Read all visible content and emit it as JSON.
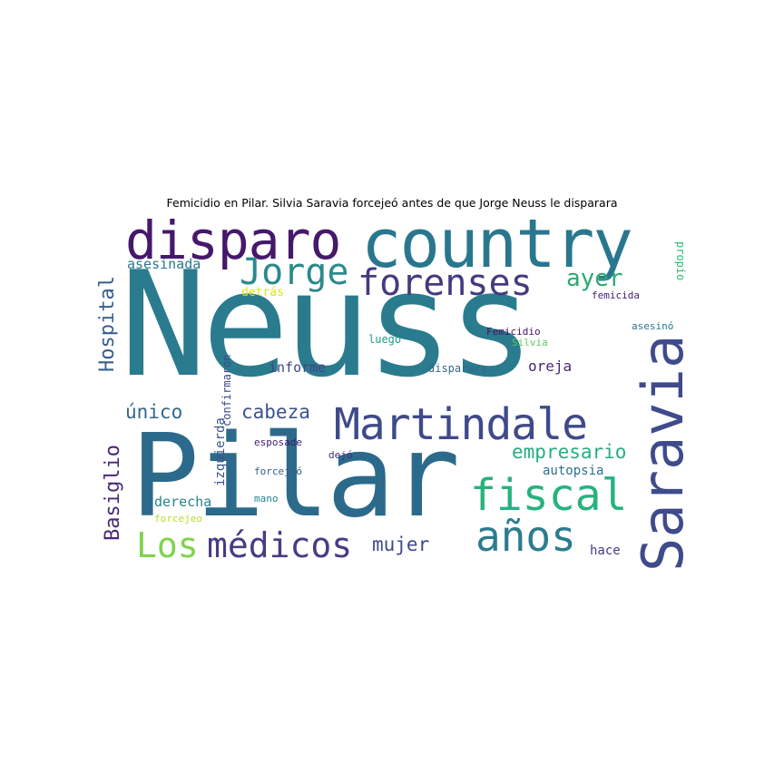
{
  "title": "Femicidio en Pilar. Silvia Saravia forcejeó antes de que Jorge Neuss le disparara",
  "words": {
    "neuss": {
      "text": "Neuss",
      "color": "#2a7b8e"
    },
    "pilar": {
      "text": "Pilar",
      "color": "#2c6a8c"
    },
    "country": {
      "text": "country",
      "color": "#29778e"
    },
    "disparo": {
      "text": "disparo",
      "color": "#46186b"
    },
    "jorge": {
      "text": "Jorge",
      "color": "#2a8a8c"
    },
    "forenses": {
      "text": "forenses",
      "color": "#433b80"
    },
    "saravia": {
      "text": "Saravia",
      "color": "#3f4b8a"
    },
    "martindale": {
      "text": "Martindale",
      "color": "#3f4a89"
    },
    "fiscal": {
      "text": "fiscal",
      "color": "#27b27d"
    },
    "anos": {
      "text": "años",
      "color": "#2c7c8e"
    },
    "los": {
      "text": "Los",
      "color": "#7fd34e"
    },
    "medicos": {
      "text": "médicos",
      "color": "#463d84"
    },
    "hospital": {
      "text": "Hospital",
      "color": "#355f8d"
    },
    "basiglio": {
      "text": "Basiglio",
      "color": "#482878"
    },
    "ayer": {
      "text": "ayer",
      "color": "#2ea971"
    },
    "empresario": {
      "text": "empresario",
      "color": "#27ad81"
    },
    "cabeza": {
      "text": "cabeza",
      "color": "#3b528b"
    },
    "unico": {
      "text": "único",
      "color": "#31688e"
    },
    "mujer": {
      "text": "mujer",
      "color": "#3e4a89"
    },
    "asesinada": {
      "text": "asesinada",
      "color": "#2a788e"
    },
    "detras": {
      "text": "detrás",
      "color": "#dde318"
    },
    "informe": {
      "text": "informe",
      "color": "#414487"
    },
    "oreja": {
      "text": "oreja",
      "color": "#482677"
    },
    "derecha": {
      "text": "derecha",
      "color": "#25848e"
    },
    "autopsia": {
      "text": "autopsia",
      "color": "#2d708e"
    },
    "hace": {
      "text": "hace",
      "color": "#443983"
    },
    "femicida": {
      "text": "femicida",
      "color": "#482173"
    },
    "femicidio": {
      "text": "Femicidio",
      "color": "#471063"
    },
    "silvia": {
      "text": "Silvia",
      "color": "#5ec962"
    },
    "asesino": {
      "text": "asesinó",
      "color": "#2a788e"
    },
    "propio": {
      "text": "propio",
      "color": "#35b779"
    },
    "luego": {
      "text": "luego",
      "color": "#1f9e89"
    },
    "disparara": {
      "text": "disparara",
      "color": "#31688e"
    },
    "confirmaron": {
      "text": "confirmaron",
      "color": "#3e4989"
    },
    "izquierda": {
      "text": "izquierda",
      "color": "#3b528b"
    },
    "esposade": {
      "text": "esposade",
      "color": "#3b1c6f"
    },
    "dejo": {
      "text": "dejó",
      "color": "#472d7b"
    },
    "forcejeo_acc": {
      "text": "forcejeó",
      "color": "#355f8d"
    },
    "mano": {
      "text": "mano",
      "color": "#26828e"
    },
    "forcejeo": {
      "text": "forcejeo",
      "color": "#b5de2b"
    }
  }
}
